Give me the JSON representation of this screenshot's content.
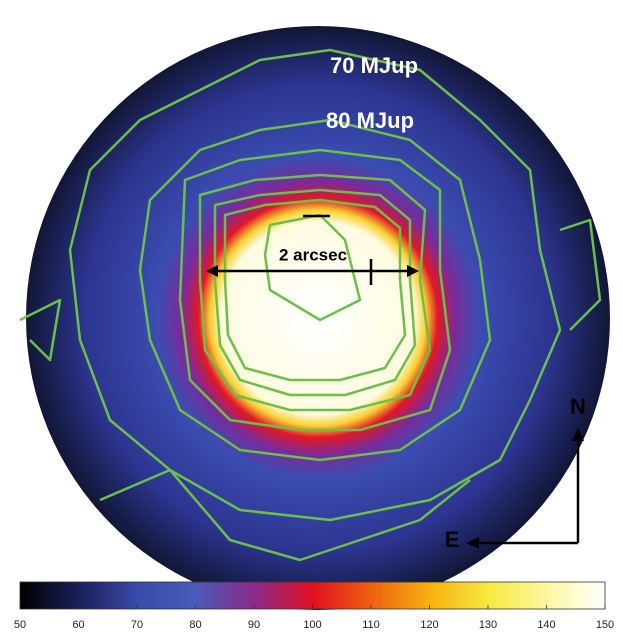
{
  "chart_data": {
    "type": "contour-image",
    "annotations": [
      "70 MJup",
      "80 MJup",
      "2 arcsec"
    ],
    "compass": {
      "north": "N",
      "east": "E"
    },
    "colorbar": {
      "lim": [
        50,
        150
      ],
      "ticks": [
        50,
        60,
        70,
        80,
        90,
        100,
        110,
        120,
        130,
        140,
        150
      ],
      "colors": [
        "#000000",
        "#1a1f5a",
        "#3a4aa8",
        "#4a5ab8",
        "#8a2a8a",
        "#e01020",
        "#f06010",
        "#f8b010",
        "#f8e840",
        "#fcf8a0",
        "#ffffff"
      ]
    }
  }
}
